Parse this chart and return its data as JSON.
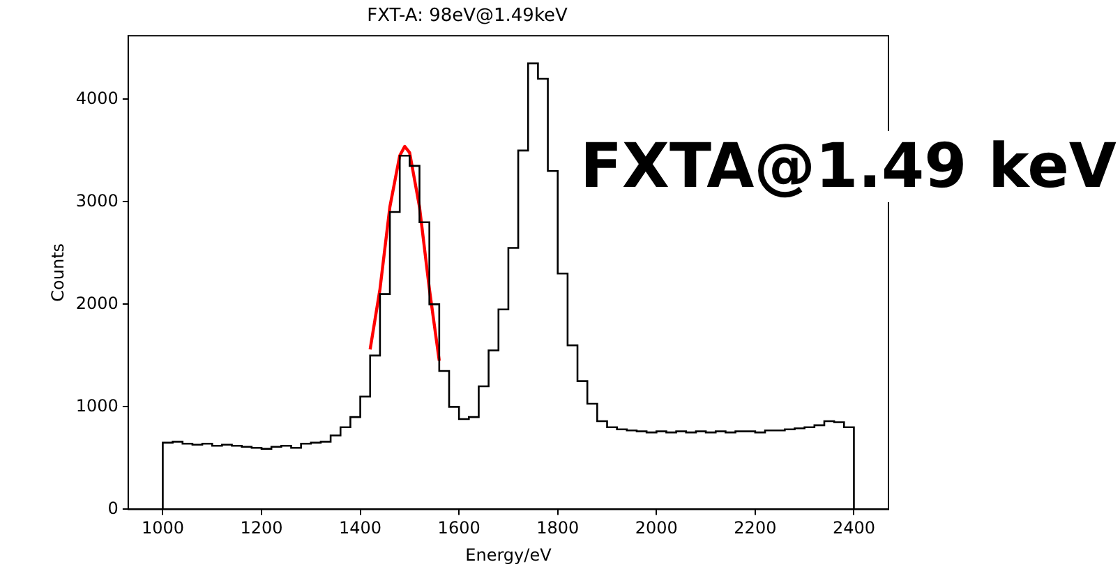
{
  "chart_data": {
    "type": "histogram",
    "title": "FXT-A: 98eV@1.49keV",
    "xlabel": "Energy/eV",
    "ylabel": "Counts",
    "annotations": [
      "FXTA@1.49 keV"
    ],
    "bins": [
      1000,
      1020,
      1040,
      1060,
      1080,
      1100,
      1120,
      1140,
      1160,
      1180,
      1200,
      1220,
      1240,
      1260,
      1280,
      1300,
      1320,
      1340,
      1360,
      1380,
      1400,
      1420,
      1440,
      1460,
      1480,
      1500,
      1520,
      1540,
      1560,
      1580,
      1600,
      1620,
      1640,
      1660,
      1680,
      1700,
      1720,
      1740,
      1760,
      1780,
      1800,
      1820,
      1840,
      1860,
      1880,
      1900,
      1920,
      1940,
      1960,
      1980,
      2000,
      2020,
      2040,
      2060,
      2080,
      2100,
      2120,
      2140,
      2160,
      2180,
      2200,
      2220,
      2240,
      2260,
      2280,
      2300,
      2320,
      2340,
      2360,
      2380,
      2400
    ],
    "values": [
      650,
      660,
      640,
      630,
      640,
      620,
      630,
      620,
      610,
      600,
      590,
      610,
      620,
      600,
      640,
      650,
      660,
      720,
      800,
      900,
      1100,
      1500,
      2100,
      2900,
      3450,
      3350,
      2800,
      2000,
      1350,
      1000,
      880,
      900,
      1200,
      1550,
      1950,
      2550,
      3500,
      4350,
      4200,
      3300,
      2300,
      1600,
      1250,
      1030,
      860,
      800,
      780,
      770,
      760,
      750,
      760,
      750,
      760,
      750,
      760,
      750,
      760,
      750,
      760,
      760,
      750,
      770,
      770,
      780,
      790,
      800,
      820,
      860,
      850,
      800
    ],
    "color": "#000000",
    "series": [
      {
        "type": "line",
        "x": [
          1420,
          1440,
          1460,
          1480,
          1490,
          1500,
          1520,
          1540,
          1560
        ],
        "values": [
          1560,
          2150,
          2950,
          3450,
          3540,
          3480,
          2950,
          2150,
          1450
        ],
        "color": "#ff0000"
      }
    ],
    "xlim": [
      930,
      2470
    ],
    "xticks": [
      1000,
      1200,
      1400,
      1600,
      1800,
      2000,
      2200,
      2400
    ],
    "ylim": [
      0,
      4620
    ],
    "yticks": [
      0,
      1000,
      2000,
      3000,
      4000
    ],
    "grid": false,
    "legend": false
  }
}
